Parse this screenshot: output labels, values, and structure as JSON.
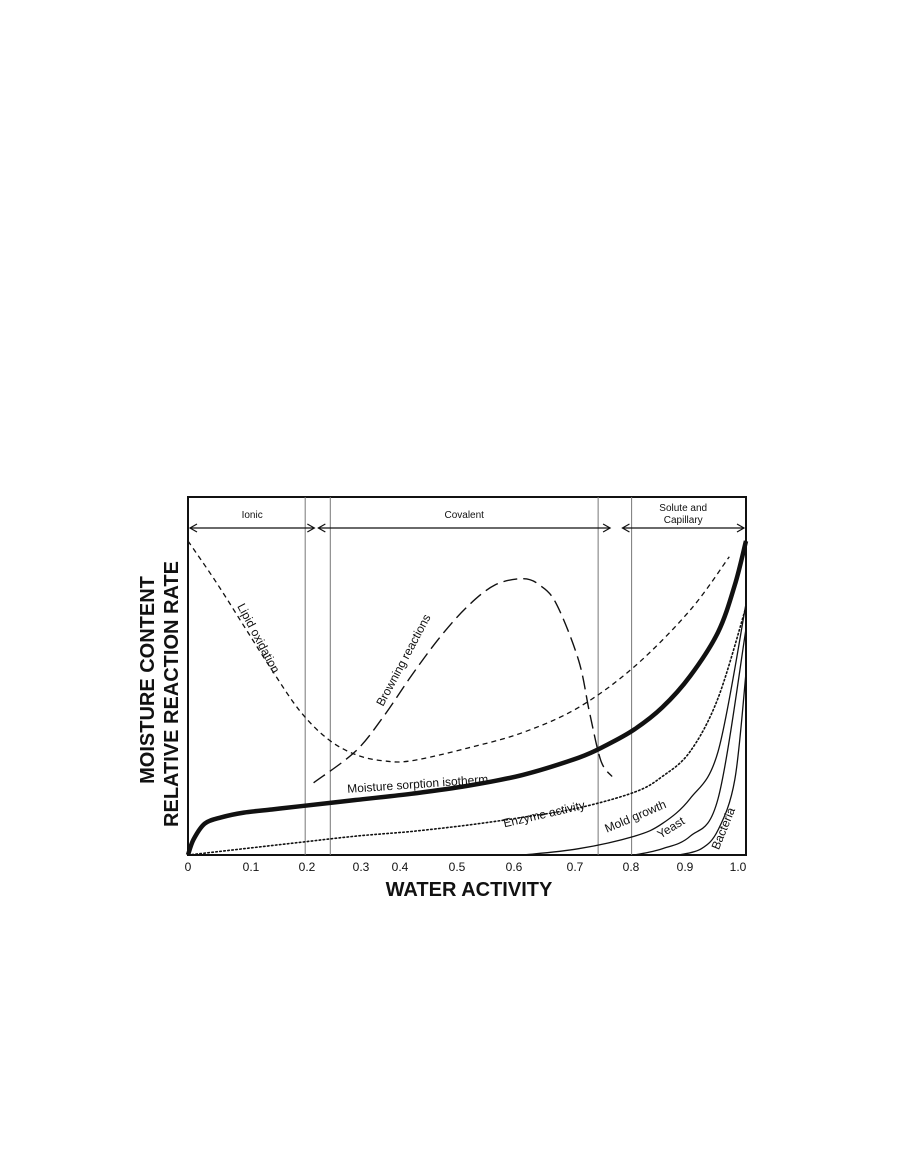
{
  "chart_data": {
    "type": "line",
    "xlabel": "WATER ACTIVITY",
    "ylabel_lines": [
      "MOISTURE CONTENT",
      "RELATIVE REACTION RATE"
    ],
    "xlim": [
      0,
      1.0
    ],
    "ylim": [
      0,
      1
    ],
    "x_ticks": [
      {
        "value": 0,
        "label": "0"
      },
      {
        "value": 0.1,
        "label": "0.1"
      },
      {
        "value": 0.2,
        "label": "0.2"
      },
      {
        "value": 0.3,
        "label": "0.3"
      },
      {
        "value": 0.4,
        "label": "0.4"
      },
      {
        "value": 0.5,
        "label": "0.5"
      },
      {
        "value": 0.6,
        "label": "0.6"
      },
      {
        "value": 0.7,
        "label": "0.7"
      },
      {
        "value": 0.8,
        "label": "0.8"
      },
      {
        "value": 0.9,
        "label": "0.9"
      },
      {
        "value": 1.0,
        "label": "1.0"
      }
    ],
    "zones": [
      {
        "label": "Ionic",
        "x_start": 0,
        "x_end": 0.23
      },
      {
        "label": "Covalent",
        "x_start": 0.23,
        "x_end": 0.76
      },
      {
        "label_lines": [
          "Solute and",
          "Capillary"
        ],
        "x_start": 0.775,
        "x_end": 1.0
      }
    ],
    "zone_boundaries": [
      0.21,
      0.255,
      0.735,
      0.795
    ],
    "series": [
      {
        "name": "Moisture sorption isotherm",
        "style": "thick",
        "x": [
          0,
          0.01,
          0.03,
          0.06,
          0.1,
          0.15,
          0.2,
          0.3,
          0.4,
          0.5,
          0.6,
          0.7,
          0.75,
          0.8,
          0.85,
          0.9,
          0.95,
          0.98,
          1.0
        ],
        "y": [
          0,
          0.05,
          0.1,
          0.12,
          0.135,
          0.145,
          0.155,
          0.175,
          0.195,
          0.22,
          0.255,
          0.31,
          0.35,
          0.4,
          0.47,
          0.57,
          0.71,
          0.86,
          1.0
        ]
      },
      {
        "name": "Enzyme activity",
        "style": "dotted",
        "x": [
          0,
          0.1,
          0.2,
          0.3,
          0.4,
          0.5,
          0.6,
          0.7,
          0.8,
          0.85,
          0.9,
          0.95,
          1.0
        ],
        "y": [
          0,
          0.02,
          0.04,
          0.06,
          0.075,
          0.095,
          0.12,
          0.15,
          0.2,
          0.25,
          0.33,
          0.5,
          0.79
        ]
      },
      {
        "name": "Lipid oxidation",
        "style": "dashed",
        "x": [
          0,
          0.05,
          0.1,
          0.15,
          0.2,
          0.25,
          0.3,
          0.35,
          0.4,
          0.5,
          0.6,
          0.7,
          0.8,
          0.9,
          0.97
        ],
        "y": [
          1.0,
          0.87,
          0.73,
          0.59,
          0.46,
          0.37,
          0.32,
          0.3,
          0.3,
          0.34,
          0.39,
          0.47,
          0.6,
          0.78,
          0.95
        ]
      },
      {
        "name": "Browning reactions",
        "style": "longdash",
        "x": [
          0.225,
          0.3,
          0.35,
          0.4,
          0.45,
          0.5,
          0.55,
          0.6,
          0.63,
          0.66,
          0.7,
          0.72,
          0.74,
          0.76
        ],
        "y": [
          0.23,
          0.33,
          0.44,
          0.57,
          0.69,
          0.79,
          0.86,
          0.88,
          0.86,
          0.8,
          0.62,
          0.45,
          0.3,
          0.25
        ]
      },
      {
        "name": "Mold growth",
        "style": "solid",
        "x": [
          0.6,
          0.7,
          0.8,
          0.85,
          0.9,
          0.95,
          1.0
        ],
        "y": [
          0,
          0.02,
          0.06,
          0.1,
          0.18,
          0.33,
          0.8
        ]
      },
      {
        "name": "Yeast",
        "style": "solid",
        "x": [
          0.8,
          0.85,
          0.9,
          0.95,
          1.0
        ],
        "y": [
          0,
          0.02,
          0.06,
          0.18,
          0.72
        ]
      },
      {
        "name": "Bacteria",
        "style": "solid",
        "x": [
          0.88,
          0.92,
          0.95,
          0.98,
          1.0
        ],
        "y": [
          0,
          0.02,
          0.08,
          0.24,
          0.58
        ]
      }
    ],
    "grid": false,
    "legend": "none"
  }
}
